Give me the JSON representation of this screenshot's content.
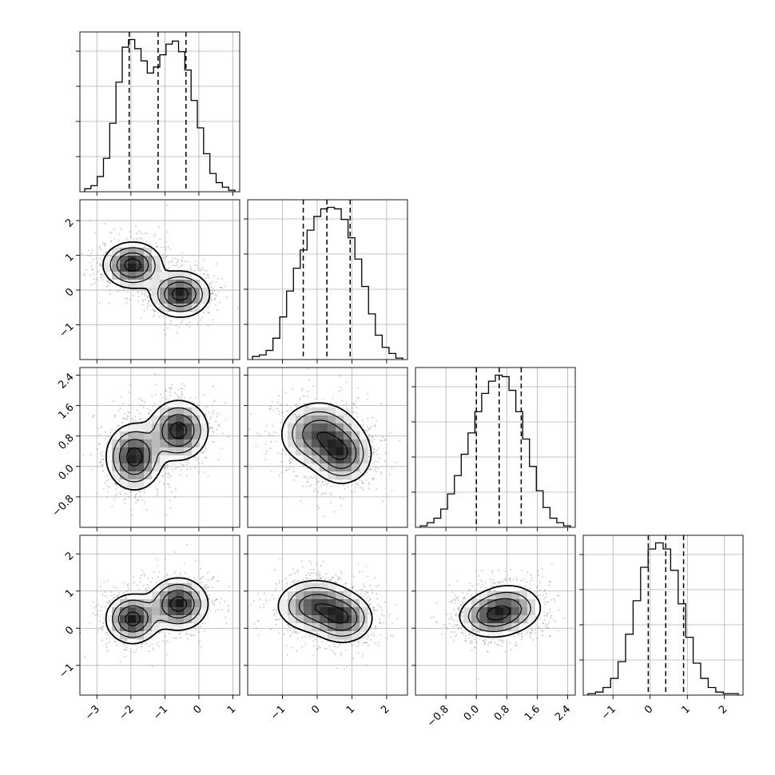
{
  "chart_data": {
    "type": "corner",
    "grid": true,
    "variables": [
      {
        "xlim": [
          -3.5,
          1.2
        ],
        "ticks": [
          -3,
          -2,
          -1,
          0,
          1
        ],
        "tick_labels": [
          "−3",
          "−2",
          "−1",
          "0",
          "1"
        ],
        "quantiles": [
          -2.05,
          -1.2,
          -0.38
        ]
      },
      {
        "xlim": [
          -2.0,
          2.6
        ],
        "ticks": [
          -1,
          0,
          1,
          2
        ],
        "tick_labels": [
          "−1",
          "0",
          "1",
          "2"
        ],
        "quantiles": [
          -0.4,
          0.28,
          0.95
        ]
      },
      {
        "xlim": [
          -1.6,
          2.6
        ],
        "ticks": [
          -0.8,
          0.0,
          0.8,
          1.6,
          2.4
        ],
        "tick_labels": [
          "−0.8",
          "0.0",
          "0.8",
          "1.6",
          "2.4"
        ],
        "quantiles": [
          0.0,
          0.6,
          1.18
        ]
      },
      {
        "xlim": [
          -1.8,
          2.5
        ],
        "ticks": [
          -1,
          0,
          1,
          2
        ],
        "tick_labels": [
          "−1",
          "0",
          "1",
          "2"
        ],
        "quantiles": [
          -0.05,
          0.42,
          0.9
        ]
      }
    ],
    "histograms": [
      {
        "variable": 0,
        "bins": 24,
        "counts": [
          2,
          4,
          10,
          22,
          45,
          72,
          95,
          100,
          94,
          86,
          78,
          82,
          90,
          97,
          99,
          92,
          80,
          60,
          42,
          25,
          12,
          6,
          3,
          1
        ],
        "ymax": 105
      },
      {
        "variable": 1,
        "bins": 22,
        "counts": [
          2,
          3,
          6,
          14,
          28,
          45,
          60,
          72,
          85,
          94,
          99,
          100,
          99,
          92,
          80,
          66,
          48,
          30,
          16,
          8,
          4,
          1
        ],
        "ymax": 105
      },
      {
        "variable": 2,
        "bins": 22,
        "counts": [
          1,
          3,
          6,
          12,
          22,
          34,
          48,
          62,
          76,
          88,
          96,
          100,
          99,
          90,
          76,
          58,
          40,
          24,
          13,
          6,
          3,
          1
        ],
        "ymax": 105
      },
      {
        "variable": 3,
        "bins": 20,
        "counts": [
          1,
          2,
          5,
          11,
          22,
          40,
          62,
          84,
          96,
          100,
          96,
          82,
          60,
          38,
          21,
          11,
          5,
          2,
          1,
          1
        ],
        "ymax": 105
      }
    ],
    "density_panels": [
      {
        "x_var": 0,
        "y_var": 1,
        "modes": [
          {
            "x": -1.95,
            "y": 0.72,
            "sx": 0.42,
            "sy": 0.32
          },
          {
            "x": -0.55,
            "y": -0.12,
            "sx": 0.42,
            "sy": 0.32
          }
        ]
      },
      {
        "x_var": 0,
        "y_var": 2,
        "modes": [
          {
            "x": -1.9,
            "y": 0.25,
            "sx": 0.4,
            "sy": 0.42
          },
          {
            "x": -0.6,
            "y": 0.95,
            "sx": 0.42,
            "sy": 0.38
          }
        ]
      },
      {
        "x_var": 1,
        "y_var": 2,
        "modes": [
          {
            "x": 0.05,
            "y": 0.85,
            "sx": 0.55,
            "sy": 0.42
          },
          {
            "x": 0.72,
            "y": 0.3,
            "sx": 0.42,
            "sy": 0.38
          }
        ]
      },
      {
        "x_var": 0,
        "y_var": 3,
        "modes": [
          {
            "x": -1.95,
            "y": 0.25,
            "sx": 0.38,
            "sy": 0.32
          },
          {
            "x": -0.6,
            "y": 0.65,
            "sx": 0.42,
            "sy": 0.34
          }
        ]
      },
      {
        "x_var": 1,
        "y_var": 3,
        "modes": [
          {
            "x": -0.05,
            "y": 0.6,
            "sx": 0.55,
            "sy": 0.35
          },
          {
            "x": 0.75,
            "y": 0.25,
            "sx": 0.42,
            "sy": 0.32
          }
        ]
      },
      {
        "x_var": 2,
        "y_var": 3,
        "modes": [
          {
            "x": 0.35,
            "y": 0.3,
            "sx": 0.42,
            "sy": 0.28
          },
          {
            "x": 0.85,
            "y": 0.55,
            "sx": 0.45,
            "sy": 0.32
          }
        ]
      }
    ]
  }
}
